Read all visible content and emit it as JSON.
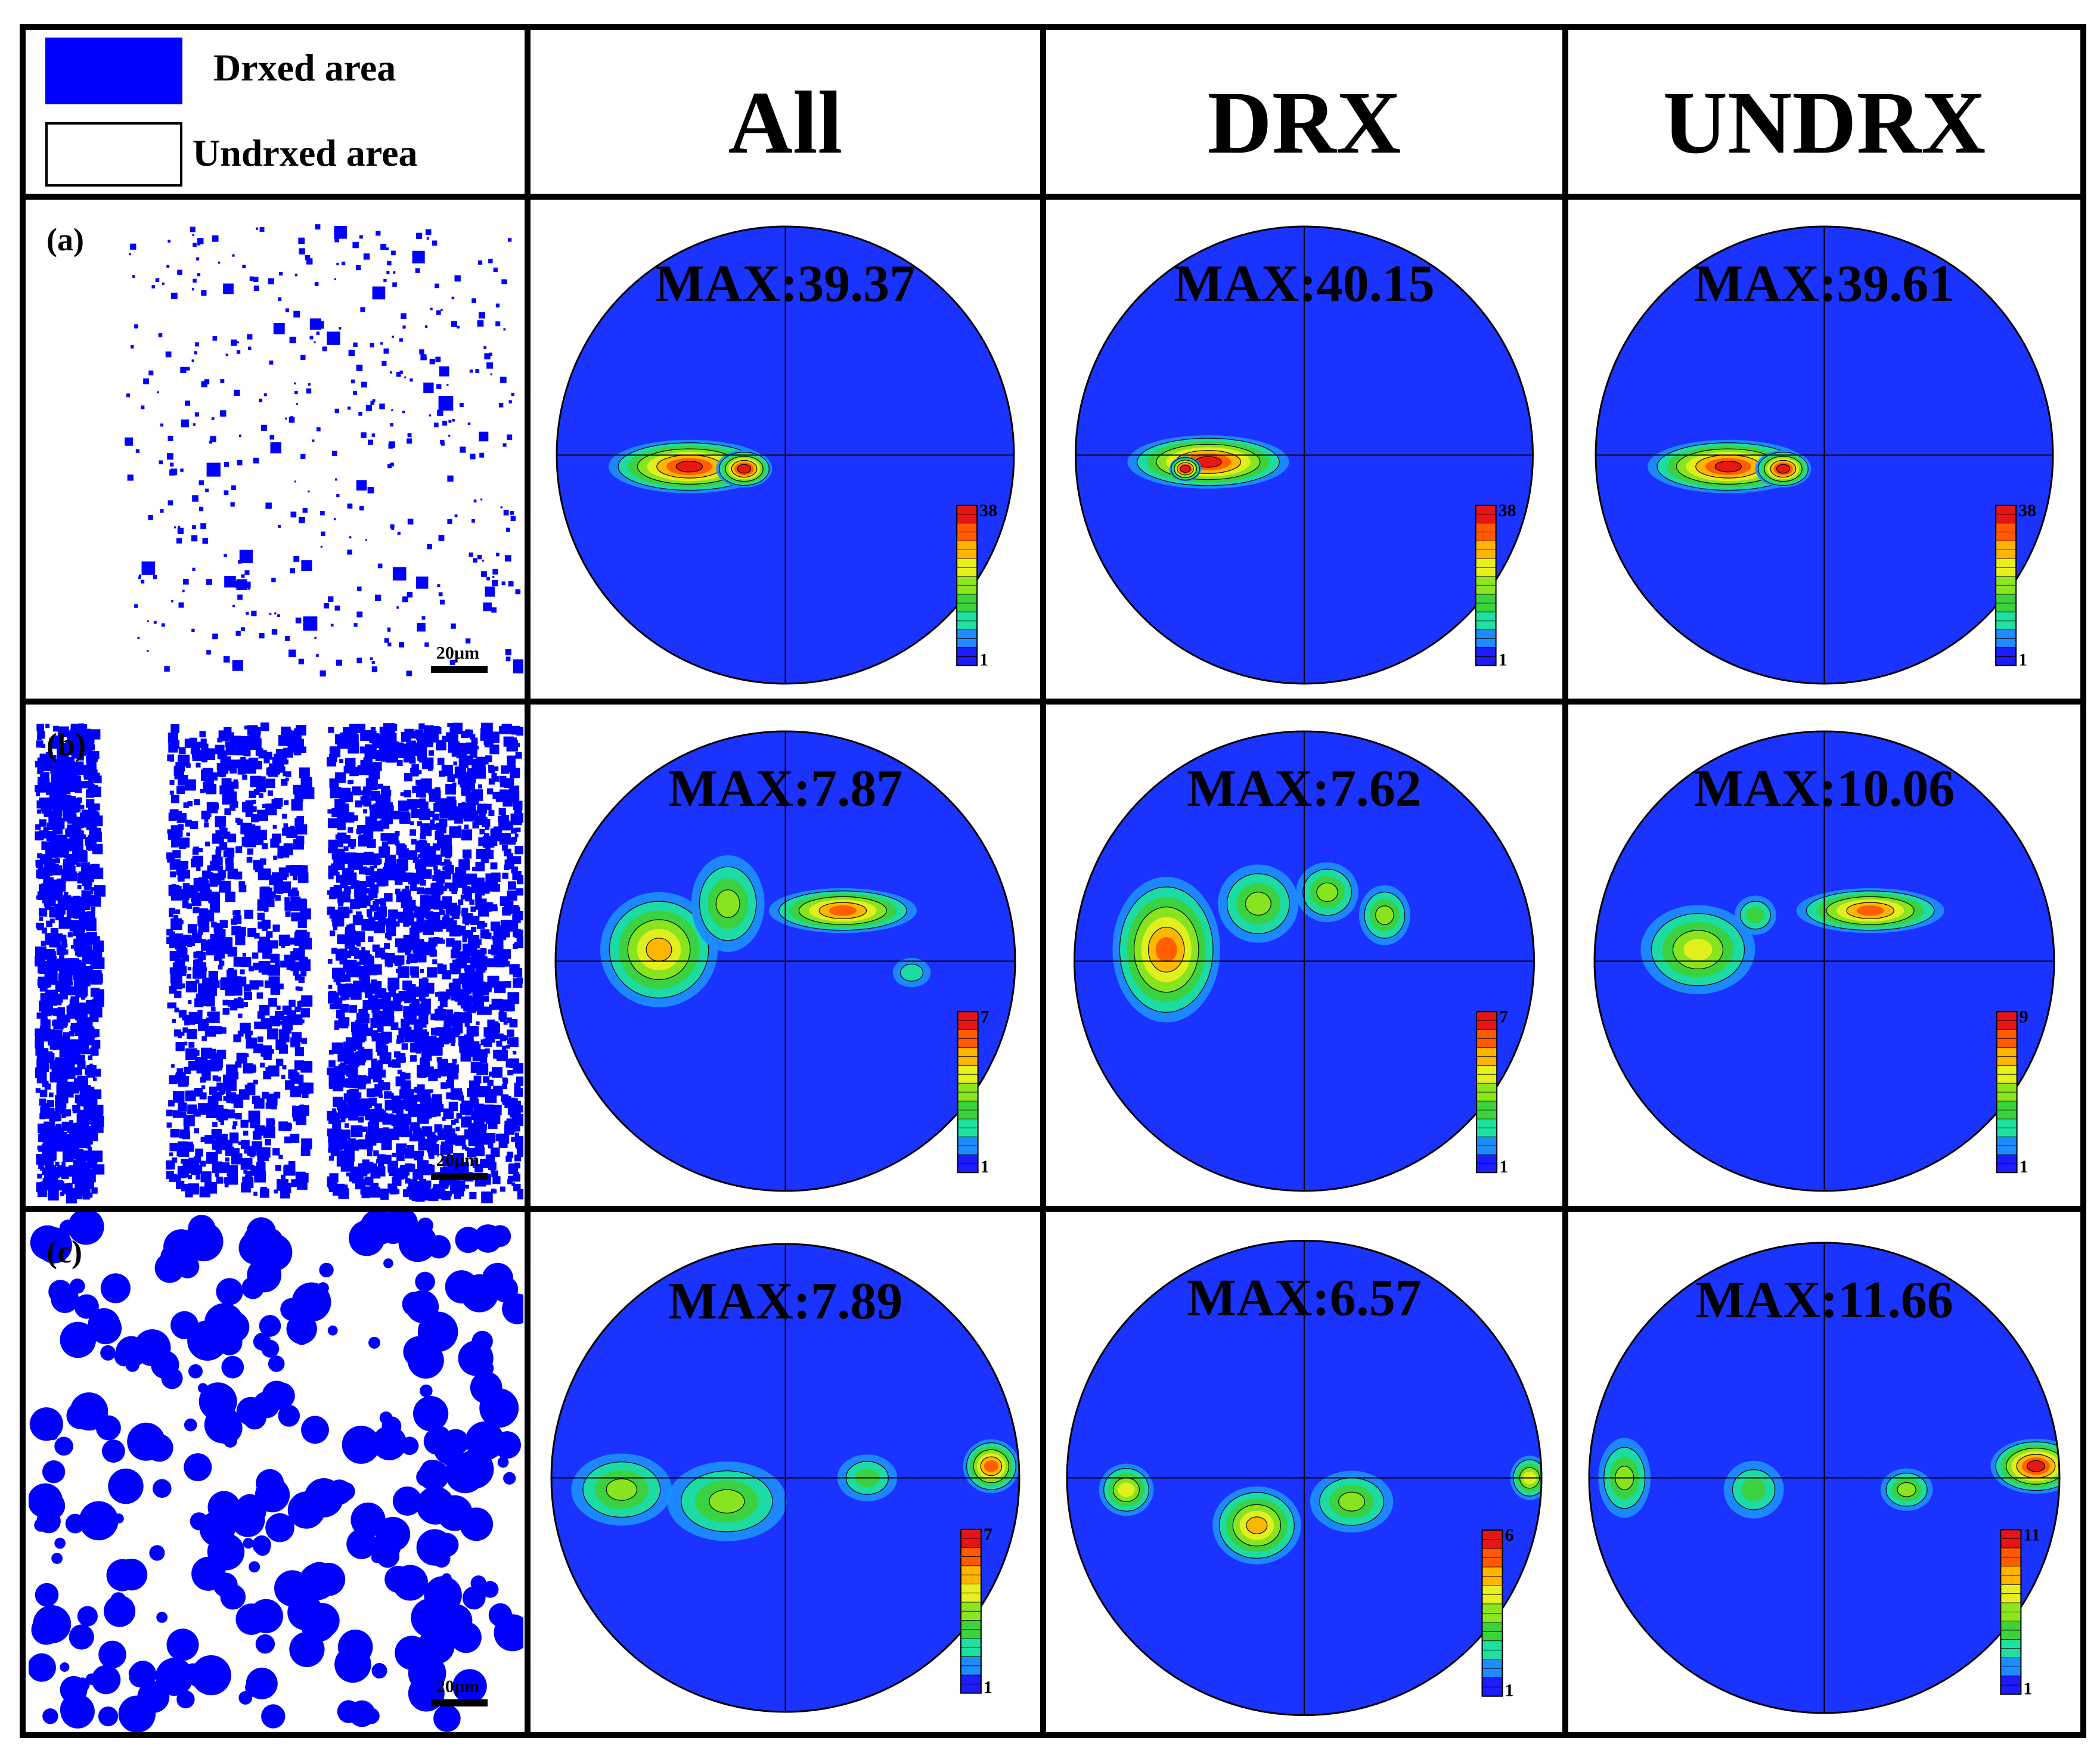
{
  "legend": {
    "drxed_label": "Drxed area",
    "undrxed_label": "Undrxed area",
    "drxed_color": "#0000ff"
  },
  "columns": [
    {
      "header": "All"
    },
    {
      "header": "DRX"
    },
    {
      "header": "UNDRX"
    }
  ],
  "rows": [
    {
      "label": "(a)",
      "scale_bar": "20µm",
      "coverage": 0.04,
      "plots": [
        {
          "max_label": "MAX:39.37",
          "scale_max": "38",
          "scale_min": "1"
        },
        {
          "max_label": "MAX:40.15",
          "scale_max": "38",
          "scale_min": "1"
        },
        {
          "max_label": "MAX:39.61",
          "scale_max": "38",
          "scale_min": "1"
        }
      ]
    },
    {
      "label": "(b)",
      "scale_bar": "20µm",
      "coverage": 0.55,
      "plots": [
        {
          "max_label": "MAX:7.87",
          "scale_max": "7",
          "scale_min": "1"
        },
        {
          "max_label": "MAX:7.62",
          "scale_max": "7",
          "scale_min": "1"
        },
        {
          "max_label": "MAX:10.06",
          "scale_max": "9",
          "scale_min": "1"
        }
      ]
    },
    {
      "label": "(c)",
      "scale_bar": "20µm",
      "coverage": 0.35,
      "plots": [
        {
          "max_label": "MAX:7.89",
          "scale_max": "7",
          "scale_min": "1"
        },
        {
          "max_label": "MAX:6.57",
          "scale_max": "6",
          "scale_min": "1"
        },
        {
          "max_label": "MAX:11.66",
          "scale_max": "11",
          "scale_min": "1"
        }
      ]
    }
  ],
  "colors": {
    "pole_background": "#1a33ff",
    "colormap": [
      "#1c1cff",
      "#1e8cff",
      "#1ee0a0",
      "#3cd23c",
      "#8ce61e",
      "#e6f01e",
      "#ffb400",
      "#ff5a00",
      "#e61414"
    ]
  }
}
